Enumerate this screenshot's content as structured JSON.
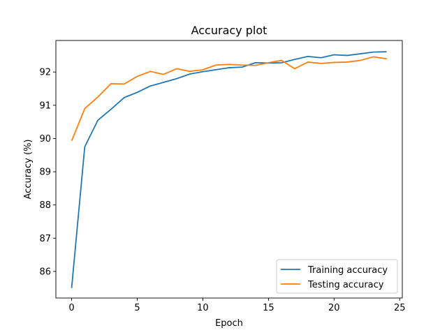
{
  "chart_data": {
    "type": "line",
    "title": "Accuracy plot",
    "xlabel": "Epoch",
    "ylabel": "Accuracy (%)",
    "xlim": [
      -1.2,
      25.2
    ],
    "ylim": [
      85.2,
      92.95
    ],
    "xticks": [
      0,
      5,
      10,
      15,
      20,
      25
    ],
    "yticks": [
      86,
      87,
      88,
      89,
      90,
      91,
      92
    ],
    "grid": false,
    "legend_position": "lower-right",
    "x": [
      0,
      1,
      2,
      3,
      4,
      5,
      6,
      7,
      8,
      9,
      10,
      11,
      12,
      13,
      14,
      15,
      16,
      17,
      18,
      19,
      20,
      21,
      22,
      23,
      24
    ],
    "series": [
      {
        "name": "Training accuracy",
        "color": "#1f77b4",
        "values": [
          85.5,
          89.75,
          90.55,
          90.88,
          91.23,
          91.39,
          91.58,
          91.69,
          91.8,
          91.94,
          92.01,
          92.07,
          92.13,
          92.15,
          92.28,
          92.27,
          92.28,
          92.38,
          92.47,
          92.43,
          92.52,
          92.5,
          92.55,
          92.6,
          92.61
        ]
      },
      {
        "name": "Testing accuracy",
        "color": "#ff7f0e",
        "values": [
          89.93,
          90.9,
          91.25,
          91.65,
          91.64,
          91.87,
          92.02,
          91.93,
          92.1,
          92.02,
          92.07,
          92.21,
          92.23,
          92.21,
          92.2,
          92.28,
          92.35,
          92.1,
          92.3,
          92.26,
          92.29,
          92.3,
          92.35,
          92.46,
          92.4
        ]
      }
    ]
  }
}
